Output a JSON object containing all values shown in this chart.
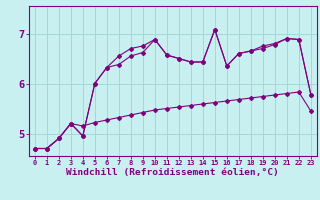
{
  "background_color": "#c8f0f0",
  "grid_color": "#a0d8d8",
  "line_color": "#800080",
  "xlabel": "Windchill (Refroidissement éolien,°C)",
  "ytick_vals": [
    5,
    6,
    7
  ],
  "ylim": [
    4.55,
    7.55
  ],
  "xlim": [
    -0.5,
    23.5
  ],
  "xtick_vals": [
    0,
    1,
    2,
    3,
    4,
    5,
    6,
    7,
    8,
    9,
    10,
    11,
    12,
    13,
    14,
    15,
    16,
    17,
    18,
    19,
    20,
    21,
    22,
    23
  ],
  "line1_x": [
    0,
    1,
    2,
    3,
    4,
    5,
    6,
    7,
    8,
    9,
    10,
    11,
    12,
    13,
    14,
    15,
    16,
    17,
    18,
    19,
    20,
    21,
    22,
    23
  ],
  "line1_y": [
    4.7,
    4.7,
    4.9,
    5.2,
    5.15,
    5.22,
    5.27,
    5.32,
    5.37,
    5.42,
    5.47,
    5.5,
    5.53,
    5.56,
    5.59,
    5.62,
    5.65,
    5.68,
    5.71,
    5.74,
    5.77,
    5.8,
    5.83,
    5.45
  ],
  "line2_x": [
    0,
    1,
    2,
    3,
    4,
    5,
    6,
    7,
    8,
    9,
    10,
    11,
    12,
    13,
    14,
    15,
    16,
    17,
    18,
    19,
    20,
    21,
    22,
    23
  ],
  "line2_y": [
    4.7,
    4.7,
    4.9,
    5.2,
    4.95,
    6.0,
    6.32,
    6.38,
    6.55,
    6.62,
    6.88,
    6.57,
    6.5,
    6.43,
    6.43,
    7.08,
    6.35,
    6.6,
    6.65,
    6.7,
    6.78,
    6.9,
    6.88,
    5.78
  ],
  "line3_x": [
    0,
    1,
    2,
    3,
    4,
    5,
    6,
    7,
    8,
    9,
    10,
    11,
    12,
    13,
    14,
    15,
    16,
    17,
    18,
    19,
    20,
    21,
    22,
    23
  ],
  "line3_y": [
    4.7,
    4.7,
    4.9,
    5.2,
    4.95,
    6.0,
    6.32,
    6.55,
    6.7,
    6.75,
    6.88,
    6.57,
    6.5,
    6.43,
    6.43,
    7.08,
    6.35,
    6.6,
    6.65,
    6.75,
    6.8,
    6.9,
    6.88,
    5.78
  ]
}
